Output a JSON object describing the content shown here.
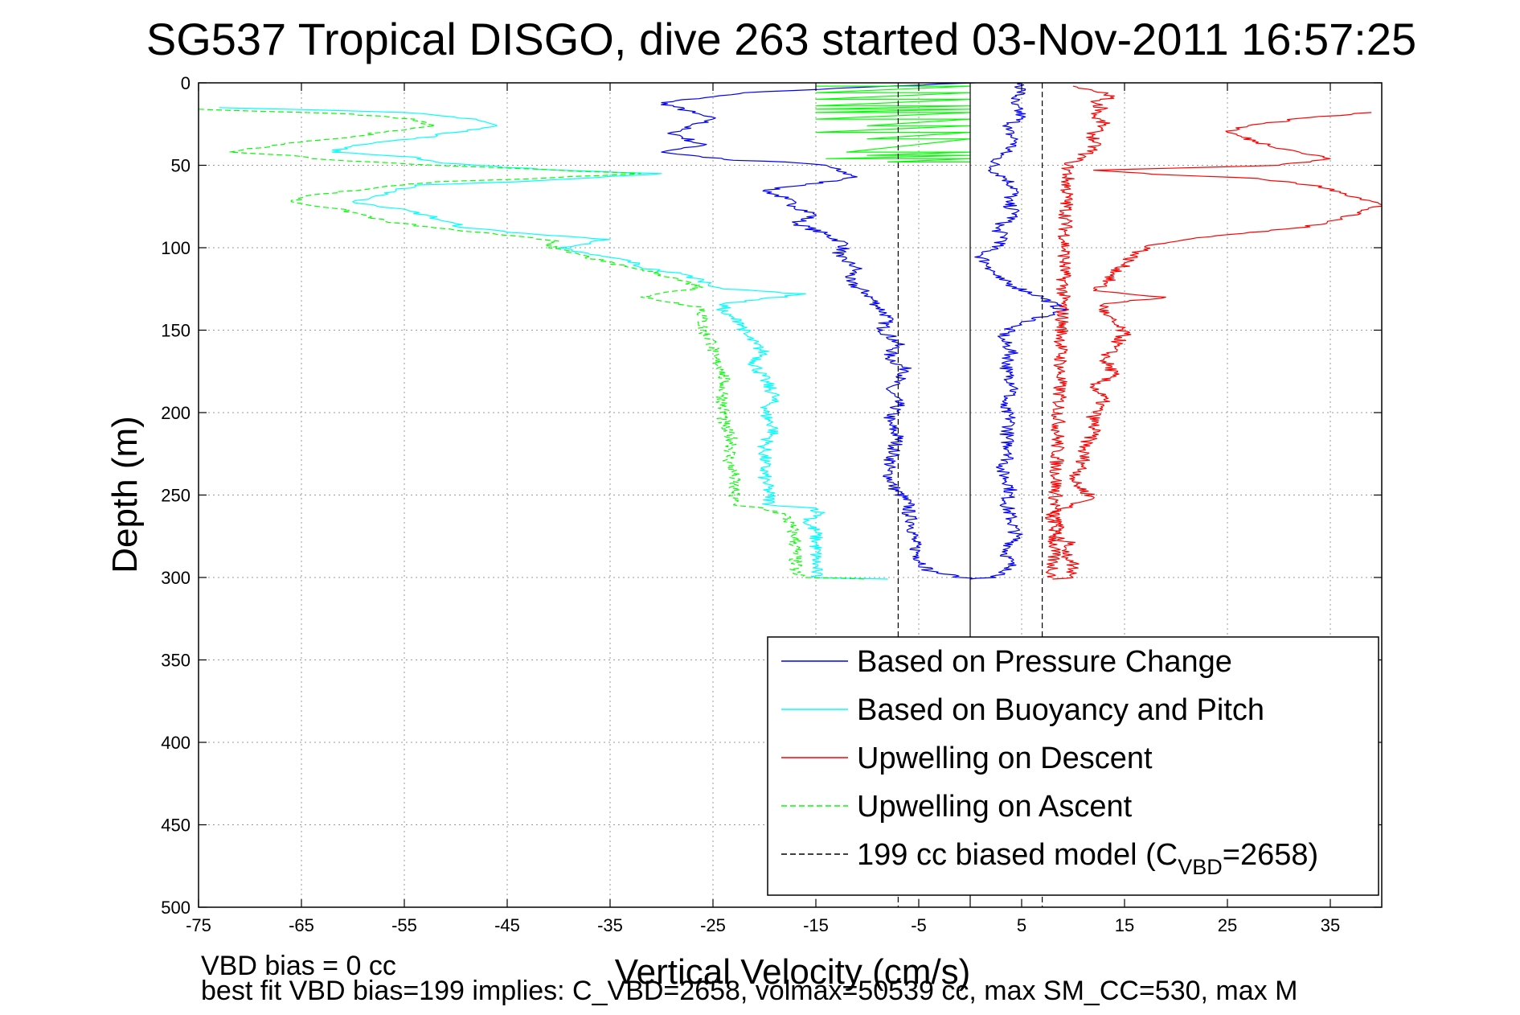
{
  "chart_data": {
    "type": "line",
    "title": "SG537 Tropical DISGO, dive 263 started 03-Nov-2011 16:57:25",
    "xlabel": "Vertical Velocity (cm/s)",
    "ylabel": "Depth (m)",
    "xlim": [
      -75,
      40
    ],
    "ylim": [
      500,
      0
    ],
    "y_reversed": true,
    "grid": true,
    "xticks": [
      -75,
      -65,
      -55,
      -45,
      -35,
      -25,
      -15,
      -5,
      5,
      15,
      25,
      35
    ],
    "yticks": [
      0,
      50,
      100,
      150,
      200,
      250,
      300,
      350,
      400,
      450,
      500
    ],
    "legend_position": "lower-right",
    "legend": [
      {
        "label": "Based on Pressure Change",
        "color": "#0000ff",
        "style": "solid"
      },
      {
        "label": "Based on Buoyancy and Pitch",
        "color": "#00ffff",
        "style": "solid"
      },
      {
        "label": "Upwelling on Descent",
        "color": "#ff0000",
        "style": "solid"
      },
      {
        "label": "Upwelling on Ascent",
        "color": "#00ff00",
        "style": "dashed"
      },
      {
        "label_main": "199 cc biased model (C",
        "label_sub": "VBD",
        "label_tail": "=2658)",
        "color": "#000000",
        "style": "dashed"
      }
    ],
    "series": [
      {
        "color": "#0000ff",
        "style": "solid",
        "points": [
          [
            0.5,
            0
          ],
          [
            -8,
            2
          ],
          [
            -22,
            6
          ],
          [
            -30,
            12
          ],
          [
            -27,
            18
          ],
          [
            -25,
            22
          ],
          [
            -29,
            30
          ],
          [
            -26,
            38
          ],
          [
            -30,
            42
          ],
          [
            -23,
            47
          ],
          [
            -18,
            48
          ],
          [
            -14,
            50
          ],
          [
            -13,
            53
          ],
          [
            -11,
            57
          ],
          [
            -16,
            62
          ],
          [
            -20,
            65
          ],
          [
            -18,
            70
          ],
          [
            -17,
            75
          ],
          [
            -15,
            80
          ],
          [
            -17,
            85
          ],
          [
            -14,
            92
          ],
          [
            -12,
            98
          ],
          [
            -13,
            105
          ],
          [
            -11,
            112
          ],
          [
            -12,
            120
          ],
          [
            -10,
            128
          ],
          [
            -9,
            135
          ],
          [
            -8,
            142
          ],
          [
            -8.5,
            150
          ],
          [
            -7,
            158
          ],
          [
            -8,
            166
          ],
          [
            -6,
            175
          ],
          [
            -8,
            185
          ],
          [
            -7,
            195
          ],
          [
            -8,
            205
          ],
          [
            -7,
            215
          ],
          [
            -7.5,
            225
          ],
          [
            -8,
            235
          ],
          [
            -7.5,
            245
          ],
          [
            -6,
            255
          ],
          [
            -6,
            262
          ],
          [
            -5.5,
            268
          ],
          [
            -5.5,
            278
          ],
          [
            -5,
            288
          ],
          [
            -4,
            296
          ],
          [
            0,
            301
          ]
        ]
      },
      {
        "color": "#0000ff",
        "style": "solid",
        "points": [
          [
            5,
            0
          ],
          [
            5,
            5
          ],
          [
            4,
            12
          ],
          [
            5,
            20
          ],
          [
            3.5,
            28
          ],
          [
            4.5,
            36
          ],
          [
            3,
            44
          ],
          [
            2,
            52
          ],
          [
            3.5,
            58
          ],
          [
            4.5,
            65
          ],
          [
            3.5,
            72
          ],
          [
            4.5,
            80
          ],
          [
            2.5,
            88
          ],
          [
            3.5,
            95
          ],
          [
            1,
            105
          ],
          [
            2,
            112
          ],
          [
            2.5,
            118
          ],
          [
            4.5,
            124
          ],
          [
            7,
            130
          ],
          [
            9,
            138
          ],
          [
            4,
            148
          ],
          [
            3,
            155
          ],
          [
            4,
            162
          ],
          [
            3.5,
            175
          ],
          [
            4.5,
            185
          ],
          [
            3,
            195
          ],
          [
            4,
            205
          ],
          [
            3.5,
            215
          ],
          [
            4,
            225
          ],
          [
            3,
            235
          ],
          [
            4,
            245
          ],
          [
            3.5,
            255
          ],
          [
            4,
            265
          ],
          [
            4.5,
            275
          ],
          [
            3.5,
            285
          ],
          [
            4,
            295
          ],
          [
            2.5,
            300
          ],
          [
            0,
            301
          ]
        ]
      },
      {
        "color": "#00ffff",
        "style": "solid",
        "points": [
          [
            -73,
            15
          ],
          [
            -55,
            18
          ],
          [
            -48,
            22
          ],
          [
            -46,
            26
          ],
          [
            -50,
            30
          ],
          [
            -54,
            34
          ],
          [
            -60,
            38
          ],
          [
            -62,
            42
          ],
          [
            -54,
            45
          ],
          [
            -52,
            48
          ],
          [
            -48,
            50
          ],
          [
            -40,
            53
          ],
          [
            -30,
            55
          ],
          [
            -38,
            58
          ],
          [
            -44,
            60
          ],
          [
            -54,
            62
          ],
          [
            -57,
            68
          ],
          [
            -60,
            72
          ],
          [
            -58,
            74
          ],
          [
            -56,
            76
          ],
          [
            -53,
            80
          ],
          [
            -51,
            84
          ],
          [
            -49,
            88
          ],
          [
            -42,
            92
          ],
          [
            -35,
            95
          ],
          [
            -40,
            100
          ],
          [
            -37,
            104
          ],
          [
            -33,
            108
          ],
          [
            -32,
            112
          ],
          [
            -28,
            116
          ],
          [
            -26,
            120
          ],
          [
            -24,
            125
          ],
          [
            -16,
            128
          ],
          [
            -24,
            134
          ],
          [
            -24,
            140
          ],
          [
            -22,
            146
          ],
          [
            -22,
            152
          ],
          [
            -21,
            158
          ],
          [
            -20,
            164
          ],
          [
            -21,
            170
          ],
          [
            -20,
            180
          ],
          [
            -19,
            190
          ],
          [
            -20,
            200
          ],
          [
            -19,
            210
          ],
          [
            -20,
            220
          ],
          [
            -20,
            230
          ],
          [
            -20,
            240
          ],
          [
            -19.5,
            250
          ],
          [
            -19.5,
            256
          ],
          [
            -15,
            258
          ],
          [
            -14.5,
            262
          ],
          [
            -16,
            266
          ],
          [
            -15,
            272
          ],
          [
            -15,
            280
          ],
          [
            -15,
            288
          ],
          [
            -15,
            296
          ],
          [
            -15,
            300
          ],
          [
            -8,
            301
          ]
        ]
      },
      {
        "color": "#00ff00",
        "style": "dashed",
        "points": [
          [
            -75,
            16
          ],
          [
            -60,
            19
          ],
          [
            -54,
            22
          ],
          [
            -52,
            26
          ],
          [
            -57,
            30
          ],
          [
            -62,
            34
          ],
          [
            -68,
            38
          ],
          [
            -72,
            42
          ],
          [
            -66,
            44
          ],
          [
            -64,
            46
          ],
          [
            -58,
            48
          ],
          [
            -52,
            50
          ],
          [
            -40,
            53
          ],
          [
            -32,
            55
          ],
          [
            -42,
            58
          ],
          [
            -52,
            60
          ],
          [
            -58,
            64
          ],
          [
            -64,
            68
          ],
          [
            -66,
            72
          ],
          [
            -62,
            76
          ],
          [
            -59,
            80
          ],
          [
            -57,
            84
          ],
          [
            -52,
            88
          ],
          [
            -46,
            92
          ],
          [
            -40,
            96
          ],
          [
            -41,
            100
          ],
          [
            -38,
            104
          ],
          [
            -36,
            108
          ],
          [
            -33,
            112
          ],
          [
            -30,
            116
          ],
          [
            -28,
            120
          ],
          [
            -26,
            124
          ],
          [
            -32,
            130
          ],
          [
            -26,
            136
          ],
          [
            -26,
            142
          ],
          [
            -26,
            150
          ],
          [
            -25,
            158
          ],
          [
            -25,
            166
          ],
          [
            -24,
            174
          ],
          [
            -24,
            182
          ],
          [
            -24,
            190
          ],
          [
            -24,
            198
          ],
          [
            -24,
            208
          ],
          [
            -23,
            218
          ],
          [
            -23.5,
            228
          ],
          [
            -23,
            238
          ],
          [
            -23,
            248
          ],
          [
            -23,
            256
          ],
          [
            -20,
            258
          ],
          [
            -18,
            262
          ],
          [
            -17.5,
            268
          ],
          [
            -17,
            276
          ],
          [
            -17,
            284
          ],
          [
            -17,
            292
          ],
          [
            -17,
            298
          ],
          [
            -16,
            300
          ],
          [
            -10,
            301
          ]
        ]
      },
      {
        "color": "#ff0000",
        "style": "solid",
        "points": [
          [
            10,
            2
          ],
          [
            12,
            5
          ],
          [
            14,
            8
          ],
          [
            12,
            12
          ],
          [
            13,
            16
          ],
          [
            12,
            20
          ],
          [
            13,
            25
          ],
          [
            12,
            30
          ],
          [
            12,
            35
          ],
          [
            12,
            40
          ],
          [
            11,
            44
          ],
          [
            10,
            48
          ],
          [
            9.5,
            50
          ],
          [
            8,
            300
          ]
        ]
      },
      {
        "color": "#ff0000",
        "style": "solid",
        "points": [
          [
            39,
            18
          ],
          [
            33,
            21
          ],
          [
            27,
            26
          ],
          [
            25,
            30
          ],
          [
            28,
            36
          ],
          [
            32,
            42
          ],
          [
            35,
            46
          ],
          [
            30,
            50
          ],
          [
            12,
            53
          ],
          [
            20,
            56
          ],
          [
            28,
            58
          ],
          [
            33,
            62
          ],
          [
            36,
            66
          ],
          [
            38,
            70
          ],
          [
            40,
            74
          ],
          [
            38,
            78
          ],
          [
            36,
            82
          ],
          [
            34,
            86
          ],
          [
            29,
            90
          ],
          [
            22,
            94
          ],
          [
            18,
            98
          ],
          [
            16,
            104
          ],
          [
            15,
            110
          ],
          [
            14,
            116
          ],
          [
            13,
            122
          ],
          [
            12,
            126
          ],
          [
            19,
            130
          ],
          [
            13,
            134
          ],
          [
            13,
            140
          ],
          [
            14,
            146
          ],
          [
            15,
            152
          ],
          [
            14,
            160
          ],
          [
            13,
            168
          ],
          [
            14,
            176
          ],
          [
            12,
            184
          ],
          [
            13,
            192
          ],
          [
            12,
            202
          ],
          [
            12,
            212
          ],
          [
            11,
            222
          ],
          [
            11,
            232
          ],
          [
            10,
            242
          ],
          [
            12,
            252
          ],
          [
            10,
            256
          ],
          [
            8,
            260
          ],
          [
            8,
            265
          ],
          [
            9,
            270
          ],
          [
            8,
            275
          ],
          [
            10,
            280
          ],
          [
            9,
            285
          ],
          [
            10,
            290
          ],
          [
            10,
            296
          ],
          [
            10,
            300
          ],
          [
            8,
            301
          ]
        ]
      },
      {
        "color": "#00ff00",
        "style": "solid",
        "points": [
          [
            -15,
            2
          ],
          [
            0,
            2
          ],
          [
            -15,
            6
          ],
          [
            0,
            6
          ],
          [
            -15,
            10
          ],
          [
            0,
            10
          ],
          [
            -15,
            14
          ],
          [
            0,
            14
          ],
          [
            -15,
            16
          ],
          [
            0,
            16
          ],
          [
            -15,
            18
          ],
          [
            0,
            18
          ],
          [
            -15,
            22
          ],
          [
            0,
            22
          ],
          [
            -10,
            26
          ],
          [
            0,
            26
          ],
          [
            -15,
            30
          ],
          [
            0,
            30
          ],
          [
            -10,
            34
          ],
          [
            0,
            34
          ],
          [
            -12,
            42
          ],
          [
            0,
            42
          ],
          [
            -10,
            44
          ],
          [
            0,
            44
          ],
          [
            -14,
            46
          ],
          [
            0,
            46
          ],
          [
            -8,
            48
          ],
          [
            0,
            48
          ]
        ]
      },
      {
        "color": "#000000",
        "style": "dashed",
        "points": [
          [
            -7,
            0
          ],
          [
            -7,
            500
          ]
        ]
      },
      {
        "color": "#000000",
        "style": "dashed",
        "points": [
          [
            7,
            0
          ],
          [
            7,
            500
          ]
        ]
      },
      {
        "color": "#000000",
        "style": "solid",
        "points": [
          [
            0,
            0
          ],
          [
            0,
            500
          ]
        ]
      }
    ]
  },
  "notes": {
    "line1": "VBD bias = 0 cc",
    "line2": "best fit VBD bias=199 implies: C_VBD=2658, volmax=50539 cc, max SM_CC=530, max M"
  }
}
